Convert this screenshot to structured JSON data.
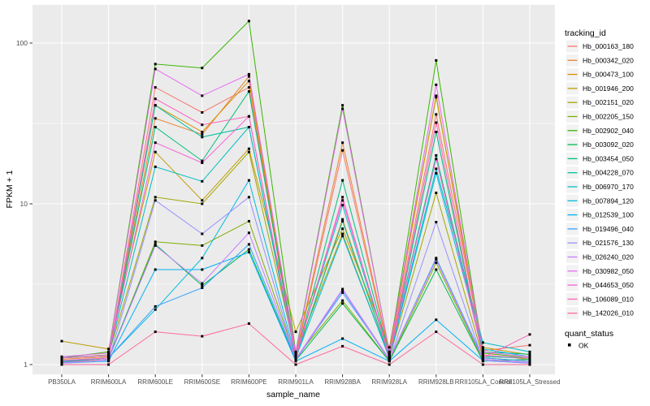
{
  "chart_data": {
    "type": "line",
    "title": "",
    "xlabel": "sample_name",
    "ylabel": "FPKM + 1",
    "y_scale": "log10",
    "y_ticks": [
      1,
      10,
      100
    ],
    "ylim": [
      1,
      173
    ],
    "grid": "on",
    "legend_position": "right",
    "point_shape": "filled-black-square",
    "categories": [
      "PB350LA",
      "RRIM600LA",
      "RRIM600LE",
      "RRIM600SE",
      "RRIM600PE",
      "RRIM901LA",
      "RRIM928BA",
      "RRIM928LA",
      "RRIM928LB",
      "RRII105LA_Control",
      "RRII105LA_Stressed"
    ],
    "series": [
      {
        "name": "Hb_000163_180",
        "color": "#F8766D",
        "values": [
          1.05,
          1.1,
          53,
          37,
          53,
          1.12,
          21.5,
          1.15,
          36,
          1.22,
          1.32
        ]
      },
      {
        "name": "Hb_000342_020",
        "color": "#EA8331",
        "values": [
          1.08,
          1.12,
          34,
          27,
          62,
          1.15,
          24,
          1.18,
          47,
          1.15,
          1.08
        ]
      },
      {
        "name": "Hb_000473_100",
        "color": "#D89000",
        "values": [
          1.02,
          1.08,
          41,
          28,
          58,
          1.1,
          8.0,
          1.1,
          28,
          1.1,
          1.05
        ]
      },
      {
        "name": "Hb_001946_200",
        "color": "#C09B00",
        "values": [
          1.4,
          1.25,
          21,
          10.5,
          22,
          1.6,
          7.0,
          1.28,
          46,
          1.28,
          1.15
        ]
      },
      {
        "name": "Hb_002151_020",
        "color": "#A3A500",
        "values": [
          1.1,
          1.15,
          11,
          10,
          21,
          1.18,
          6.5,
          1.1,
          11.7,
          1.1,
          1.05
        ]
      },
      {
        "name": "Hb_002205_150",
        "color": "#7CAE00",
        "values": [
          1.04,
          1.08,
          5.8,
          5.5,
          7.8,
          1.1,
          2.5,
          1.05,
          4.3,
          1.06,
          1.03
        ]
      },
      {
        "name": "Hb_002902_040",
        "color": "#39B600",
        "values": [
          1.1,
          1.2,
          74,
          70,
          137,
          1.2,
          41,
          1.2,
          78,
          1.18,
          1.1
        ]
      },
      {
        "name": "Hb_003092_020",
        "color": "#00BB4E",
        "values": [
          1.04,
          1.1,
          5.6,
          3.1,
          5.2,
          1.06,
          2.4,
          1.05,
          3.9,
          1.05,
          1.08
        ]
      },
      {
        "name": "Hb_003454_050",
        "color": "#00BF7D",
        "values": [
          1.1,
          1.14,
          30,
          18.5,
          50,
          1.12,
          14,
          1.15,
          20,
          1.2,
          1.16
        ]
      },
      {
        "name": "Hb_004228_070",
        "color": "#00C1A3",
        "values": [
          1.06,
          1.1,
          41,
          26,
          30,
          1.1,
          7.8,
          1.1,
          28,
          1.12,
          1.1
        ]
      },
      {
        "name": "Hb_006970_170",
        "color": "#00BFC4",
        "values": [
          1.1,
          1.14,
          17,
          13.8,
          30,
          1.14,
          9.8,
          1.12,
          16.5,
          1.37,
          1.2
        ]
      },
      {
        "name": "Hb_007894_120",
        "color": "#00BAE0",
        "values": [
          1.05,
          1.1,
          2.2,
          4.6,
          14,
          1.1,
          6.3,
          1.1,
          15.5,
          1.25,
          1.12
        ]
      },
      {
        "name": "Hb_012539_100",
        "color": "#00B0F6",
        "values": [
          1.02,
          1.05,
          3.9,
          3.9,
          5.0,
          1.05,
          1.45,
          1.05,
          1.9,
          1.06,
          1.02
        ]
      },
      {
        "name": "Hb_019496_040",
        "color": "#35A2FF",
        "values": [
          1.05,
          1.1,
          2.3,
          3.0,
          5.6,
          1.08,
          2.8,
          1.08,
          4.6,
          1.1,
          1.05
        ]
      },
      {
        "name": "Hb_021576_130",
        "color": "#9590FF",
        "values": [
          1.02,
          1.06,
          10.5,
          6.5,
          11,
          1.06,
          2.9,
          1.06,
          7.7,
          1.06,
          1.02
        ]
      },
      {
        "name": "Hb_026240_020",
        "color": "#C77CFF",
        "values": [
          1.03,
          1.08,
          5.5,
          3.2,
          6.6,
          1.08,
          2.95,
          1.08,
          4.5,
          1.08,
          1.03
        ]
      },
      {
        "name": "Hb_030982_050",
        "color": "#E76BF3",
        "values": [
          1.12,
          1.18,
          69,
          47,
          64,
          1.18,
          39,
          1.2,
          55,
          1.2,
          1.12
        ]
      },
      {
        "name": "Hb_044653_050",
        "color": "#FA62DB",
        "values": [
          1.1,
          1.14,
          24,
          18,
          35,
          1.14,
          10.5,
          1.14,
          19,
          1.14,
          1.1
        ]
      },
      {
        "name": "Hb_106089_010",
        "color": "#FF62BC",
        "values": [
          1.06,
          1.1,
          45,
          31,
          35,
          1.1,
          11,
          1.1,
          32,
          1.1,
          1.54
        ]
      },
      {
        "name": "Hb_142026_010",
        "color": "#FF6A98",
        "values": [
          1.0,
          1.0,
          1.6,
          1.5,
          1.8,
          1.0,
          1.3,
          1.0,
          1.6,
          1.0,
          1.0
        ]
      }
    ],
    "legend": {
      "tracking_id_title": "tracking_id",
      "quant_status_title": "quant_status",
      "quant_status_items": [
        {
          "label": "OK"
        }
      ]
    },
    "panel": {
      "bg": "#EBEBEB",
      "grid_major": "#FFFFFF",
      "grid_minor": "#F7F7F7",
      "tick_color": "#333333",
      "tick_label_color": "#4D4D4D",
      "point_color": "#000000"
    }
  }
}
